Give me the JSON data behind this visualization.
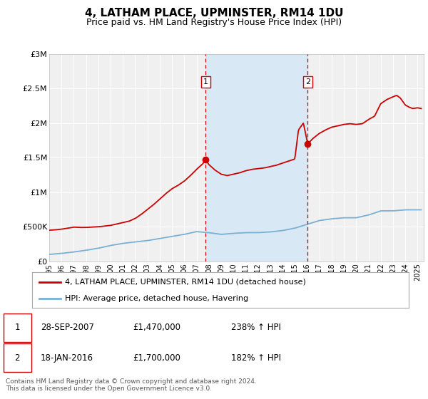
{
  "title": "4, LATHAM PLACE, UPMINSTER, RM14 1DU",
  "subtitle": "Price paid vs. HM Land Registry's House Price Index (HPI)",
  "bg_color": "#ffffff",
  "plot_bg_color": "#f0f0f0",
  "shaded_region_color": "#d8e8f5",
  "grid_color": "#ffffff",
  "ylabel_ticks": [
    "£0",
    "£500K",
    "£1M",
    "£1.5M",
    "£2M",
    "£2.5M",
    "£3M"
  ],
  "ylabel_values": [
    0,
    500000,
    1000000,
    1500000,
    2000000,
    2500000,
    3000000
  ],
  "ylim": [
    0,
    3000000
  ],
  "xlim_start": 1995.0,
  "xlim_end": 2025.5,
  "x_tick_years": [
    1995,
    1996,
    1997,
    1998,
    1999,
    2000,
    2001,
    2002,
    2003,
    2004,
    2005,
    2006,
    2007,
    2008,
    2009,
    2010,
    2011,
    2012,
    2013,
    2014,
    2015,
    2016,
    2017,
    2018,
    2019,
    2020,
    2021,
    2022,
    2023,
    2024,
    2025
  ],
  "sale1_x": 2007.74,
  "sale1_y": 1470000,
  "sale1_label": "1",
  "sale1_date": "28-SEP-2007",
  "sale1_price": "£1,470,000",
  "sale1_hpi": "238% ↑ HPI",
  "sale2_x": 2016.05,
  "sale2_y": 1700000,
  "sale2_label": "2",
  "sale2_date": "18-JAN-2016",
  "sale2_price": "£1,700,000",
  "sale2_hpi": "182% ↑ HPI",
  "line1_color": "#cc0000",
  "line2_color": "#7ab0d4",
  "line1_label": "4, LATHAM PLACE, UPMINSTER, RM14 1DU (detached house)",
  "line2_label": "HPI: Average price, detached house, Havering",
  "footnote": "Contains HM Land Registry data © Crown copyright and database right 2024.\nThis data is licensed under the Open Government Licence v3.0.",
  "marker_color": "#cc0000",
  "marker_size": 7
}
